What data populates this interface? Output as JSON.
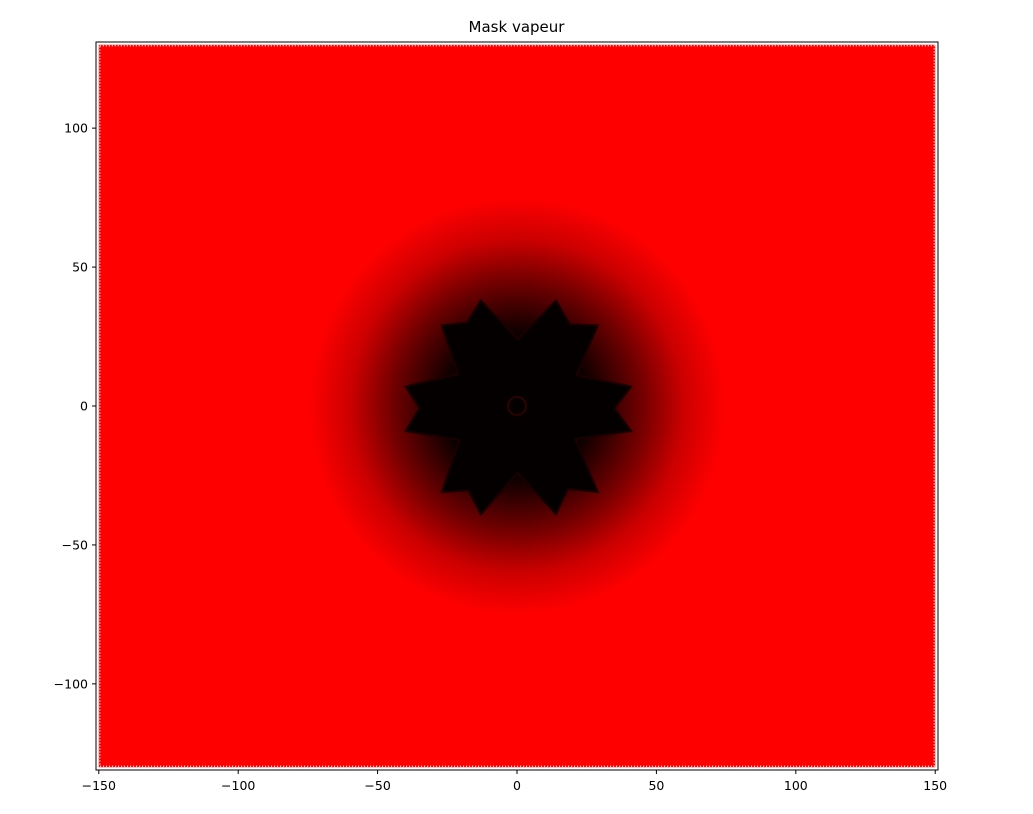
{
  "chart_data": {
    "type": "heatmap",
    "title": "Mask vapeur",
    "xlabel": "",
    "ylabel": "",
    "xlim": [
      -151,
      151
    ],
    "ylim": [
      -131,
      131
    ],
    "x_ticks": [
      -150,
      -100,
      -50,
      0,
      50,
      100,
      150
    ],
    "y_ticks": [
      -100,
      -50,
      0,
      50,
      100
    ],
    "x_tick_labels": [
      "−150",
      "−100",
      "−50",
      "0",
      "50",
      "100",
      "150"
    ],
    "y_tick_labels": [
      "−100",
      "−50",
      "0",
      "50",
      "100"
    ],
    "domain": {
      "x": [
        -150,
        150
      ],
      "y": [
        -130,
        130
      ]
    },
    "colormap": {
      "low": "#000000",
      "high": "#ff0000"
    },
    "dark_region": {
      "shape": "eight-pointed star",
      "center": [
        0,
        0
      ],
      "arm_tips": [
        [
          -13,
          38
        ],
        [
          14,
          38
        ],
        [
          29,
          29
        ],
        [
          41,
          7
        ],
        [
          41,
          -9
        ],
        [
          29,
          -31
        ],
        [
          14,
          -39
        ],
        [
          -13,
          -39
        ],
        [
          -27,
          -31
        ],
        [
          -40,
          -9
        ],
        [
          -40,
          7
        ],
        [
          -27,
          29
        ]
      ],
      "fade_radius": 75
    },
    "grid": false,
    "legend": "none"
  }
}
